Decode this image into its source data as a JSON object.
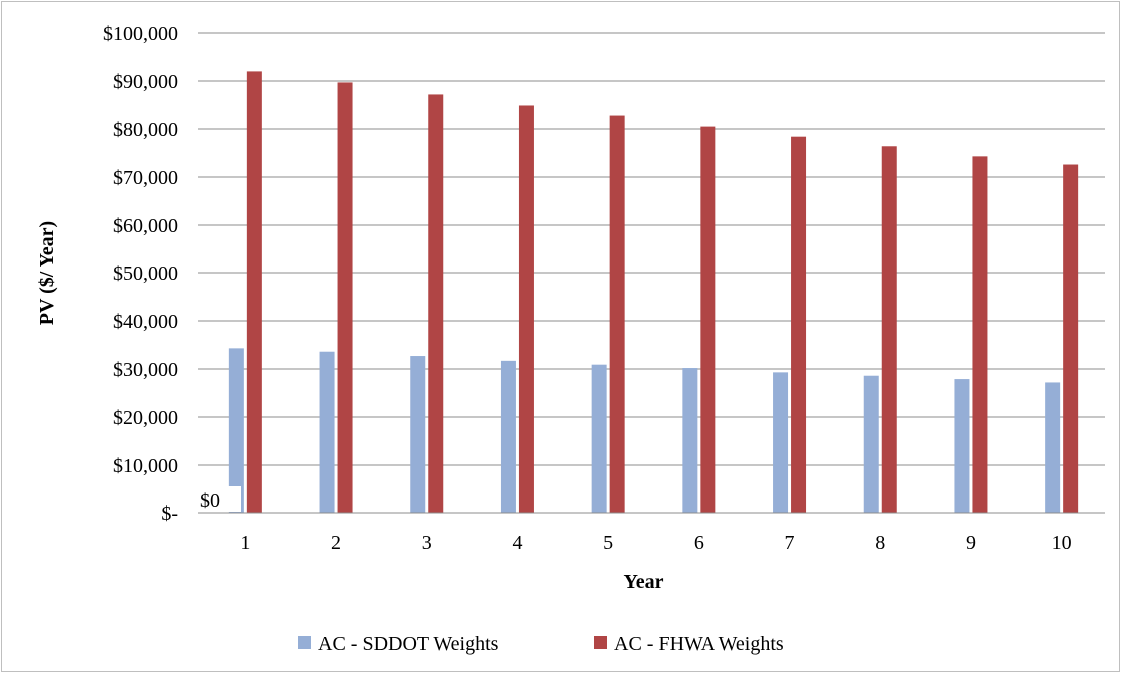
{
  "chart_data": {
    "type": "bar",
    "title": "",
    "xlabel": "Year",
    "ylabel": "PV ($/ Year)",
    "categories": [
      "1",
      "2",
      "3",
      "4",
      "5",
      "6",
      "7",
      "8",
      "9",
      "10"
    ],
    "ylim": [
      0,
      100000
    ],
    "yticks": [
      {
        "value": 0,
        "label": "$-"
      },
      {
        "value": 10000,
        "label": "$10,000"
      },
      {
        "value": 20000,
        "label": "$20,000"
      },
      {
        "value": 30000,
        "label": "$30,000"
      },
      {
        "value": 40000,
        "label": "$40,000"
      },
      {
        "value": 50000,
        "label": "$50,000"
      },
      {
        "value": 60000,
        "label": "$60,000"
      },
      {
        "value": 70000,
        "label": "$70,000"
      },
      {
        "value": 80000,
        "label": "$80,000"
      },
      {
        "value": 90000,
        "label": "$90,000"
      },
      {
        "value": 100000,
        "label": "$100,000"
      }
    ],
    "grid": true,
    "legend": "bottom",
    "annotation": "$0",
    "series": [
      {
        "name": "AC - SDDOT Weights",
        "color": "#95aed6",
        "values": [
          34300,
          33600,
          32700,
          31700,
          30900,
          30200,
          29300,
          28600,
          27900,
          27200
        ]
      },
      {
        "name": "AC - FHWA Weights",
        "color": "#b04545",
        "values": [
          92000,
          89700,
          87200,
          84900,
          82800,
          80500,
          78400,
          76400,
          74300,
          72600
        ]
      }
    ]
  }
}
